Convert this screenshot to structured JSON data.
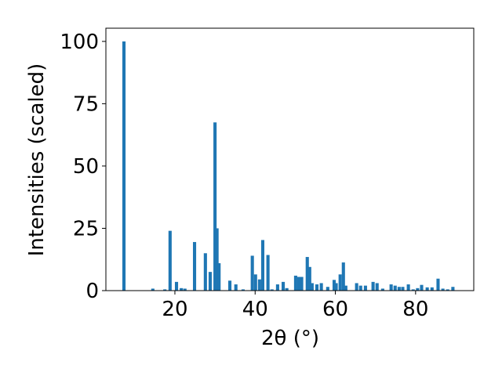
{
  "chart_data": {
    "type": "bar",
    "xlabel": "2θ (°)",
    "ylabel": "Intensities (scaled)",
    "x": [
      7.3,
      14.5,
      17.5,
      18.8,
      20.4,
      21.6,
      22.5,
      24.9,
      27.6,
      28.8,
      30.0,
      30.5,
      31.0,
      33.7,
      35.2,
      37.0,
      39.3,
      40.1,
      41.1,
      41.9,
      43.2,
      44.2,
      45.6,
      47.0,
      47.9,
      50.1,
      50.9,
      51.6,
      53.0,
      53.6,
      54.2,
      55.4,
      56.5,
      58.1,
      59.7,
      60.2,
      61.2,
      62.0,
      62.6,
      65.3,
      66.3,
      67.5,
      69.4,
      70.4,
      71.8,
      73.9,
      74.9,
      75.9,
      76.8,
      78.2,
      79.4,
      80.5,
      81.5,
      82.9,
      84.1,
      85.6,
      86.8,
      88.0,
      89.3
    ],
    "values": [
      100,
      0.8,
      0.5,
      24,
      3.5,
      1,
      0.8,
      19.5,
      15,
      7.5,
      67.5,
      25,
      11,
      4,
      2.5,
      0.5,
      14,
      6.5,
      4.5,
      20.3,
      14.3,
      0.5,
      2.5,
      3.5,
      1,
      6,
      5.5,
      5.5,
      13.5,
      9.5,
      3,
      2.5,
      3,
      1.5,
      4.3,
      3,
      6.5,
      11.3,
      2,
      3,
      2,
      2,
      3.5,
      3,
      0.8,
      2.5,
      2,
      1.5,
      1.5,
      2.5,
      0.5,
      1,
      2.3,
      1.3,
      1.3,
      4.8,
      0.8,
      0.5,
      1.5
    ],
    "bar_width": 0.8,
    "color": "#1f77b4",
    "xlim": [
      2.8,
      94.5
    ],
    "ylim": [
      0,
      105.3
    ],
    "xticks": [
      20,
      40,
      60,
      80
    ],
    "yticks": [
      0,
      25,
      50,
      75,
      100
    ],
    "grid": false
  }
}
